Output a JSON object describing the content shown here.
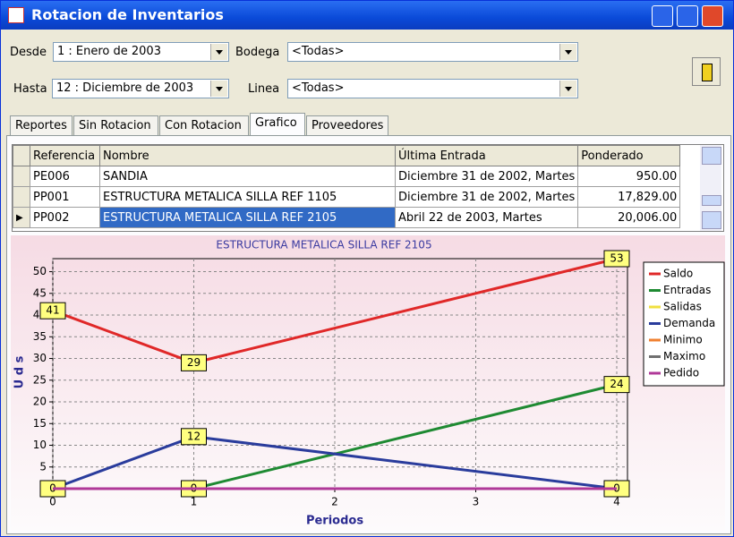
{
  "window": {
    "title": "Rotacion de Inventarios"
  },
  "filters": {
    "desde_label": "Desde",
    "desde_value": "1 : Enero de 2003",
    "bodega_label": "Bodega",
    "bodega_value": "<Todas>",
    "hasta_label": "Hasta",
    "hasta_value": "12 : Diciembre de 2003",
    "linea_label": "Linea",
    "linea_value": "<Todas>"
  },
  "tabs": [
    "Reportes",
    "Sin Rotacion",
    "Con Rotacion",
    "Grafico",
    "Proveedores"
  ],
  "table": {
    "columns": [
      "Referencia",
      "Nombre",
      "Última Entrada",
      "Ponderado"
    ],
    "rows": [
      [
        "PE006",
        "SANDIA",
        "Diciembre 31 de  2002, Martes",
        "950.00"
      ],
      [
        "PP001",
        "ESTRUCTURA METALICA SILLA REF 1105",
        "Diciembre 31 de  2002, Martes",
        "17,829.00"
      ],
      [
        "PP002",
        "ESTRUCTURA METALICA SILLA REF 2105",
        "Abril 22 de  2003, Martes",
        "20,006.00"
      ]
    ]
  },
  "chart_data": {
    "type": "line",
    "title": "ESTRUCTURA METALICA SILLA REF 2105",
    "x_label": "Periodos",
    "y_label": "U d s",
    "xlim": [
      0,
      4
    ],
    "xticks": [
      0,
      1,
      2,
      3,
      4
    ],
    "ylim": [
      0,
      53
    ],
    "yticks": [
      0,
      5,
      10,
      15,
      20,
      25,
      30,
      35,
      40,
      45,
      50
    ],
    "grid": true,
    "legend": "right",
    "series": [
      {
        "name": "Saldo",
        "color": "#e02828",
        "x": [
          0,
          1,
          4
        ],
        "values": [
          41,
          29,
          53
        ],
        "show_labels": true
      },
      {
        "name": "Entradas",
        "color": "#1e8a32",
        "x": [
          0,
          1,
          4
        ],
        "values": [
          0,
          0,
          24
        ],
        "show_labels": true
      },
      {
        "name": "Salidas",
        "color": "#f0e040",
        "x": [
          0,
          1,
          4
        ],
        "values": [
          0,
          0,
          0
        ],
        "show_labels": false
      },
      {
        "name": "Demanda",
        "color": "#2a3c9c",
        "x": [
          0,
          1,
          4
        ],
        "values": [
          0,
          12,
          0
        ],
        "show_labels": true
      },
      {
        "name": "Minimo",
        "color": "#f08030",
        "x": [
          0,
          1,
          4
        ],
        "values": [
          0,
          0,
          0
        ],
        "show_labels": false
      },
      {
        "name": "Maximo",
        "color": "#707070",
        "x": [
          0,
          1,
          4
        ],
        "values": [
          0,
          0,
          0
        ],
        "show_labels": false
      },
      {
        "name": "Pedido",
        "color": "#b03898",
        "x": [
          0,
          1,
          4
        ],
        "values": [
          0,
          0,
          0
        ],
        "show_labels": false
      }
    ]
  }
}
